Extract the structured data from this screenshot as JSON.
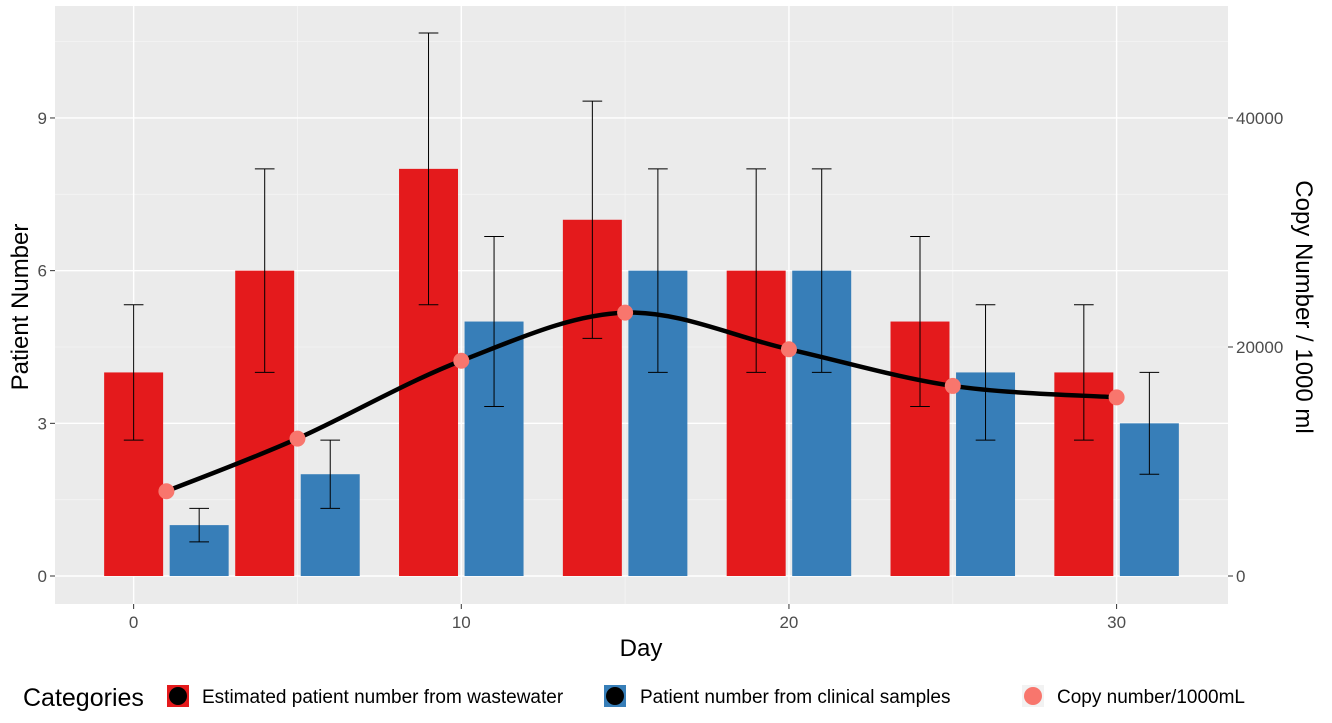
{
  "chart_data": {
    "type": "bar",
    "xlabel": "Day",
    "ylabel": "Patient Number",
    "y2label": "Copy Number / 1000 ml",
    "x_ticks": [
      "0",
      "10",
      "20",
      "30"
    ],
    "x_tick_values": [
      0,
      10,
      20,
      30
    ],
    "y_ticks": [
      "0",
      "3",
      "6",
      "9"
    ],
    "y_tick_values": [
      0,
      3,
      6,
      9
    ],
    "y2_ticks": [
      "0",
      "20000",
      "40000"
    ],
    "y2_tick_values": [
      0,
      20000,
      40000
    ],
    "xlim": [
      -2.4,
      33.4
    ],
    "ylim": [
      -0.55,
      11.2
    ],
    "y2_scale": 4444.4,
    "grid": true,
    "legend_position": "bottom",
    "legend_title": "Categories",
    "series": [
      {
        "name": "Estimated patient number from wastewater",
        "kind": "bar",
        "color": "#E41A1C",
        "x": [
          0,
          4,
          9,
          14,
          19,
          24,
          29
        ],
        "values": [
          4,
          6,
          8,
          7,
          6,
          5,
          4
        ],
        "error_low": [
          2.67,
          4,
          5.33,
          4.67,
          4,
          3.33,
          2.67
        ],
        "error_high": [
          5.33,
          8,
          10.67,
          9.33,
          8,
          6.67,
          5.33
        ]
      },
      {
        "name": "Patient number from clinical samples",
        "kind": "bar",
        "color": "#377EB8",
        "x": [
          2,
          6,
          11,
          16,
          21,
          26,
          31
        ],
        "values": [
          1,
          2,
          5,
          6,
          6,
          4,
          3
        ],
        "error_low": [
          0.67,
          1.33,
          3.33,
          4,
          4,
          2.67,
          2
        ],
        "error_high": [
          1.33,
          2.67,
          6.67,
          8,
          8,
          5.33,
          4
        ]
      },
      {
        "name": "Copy number/1000mL",
        "kind": "point+smooth",
        "color": "#F8766D",
        "x": [
          1,
          5,
          10,
          15,
          20,
          25,
          30
        ],
        "values": [
          7400,
          12000,
          18800,
          23000,
          19800,
          16600,
          15600
        ]
      }
    ]
  }
}
